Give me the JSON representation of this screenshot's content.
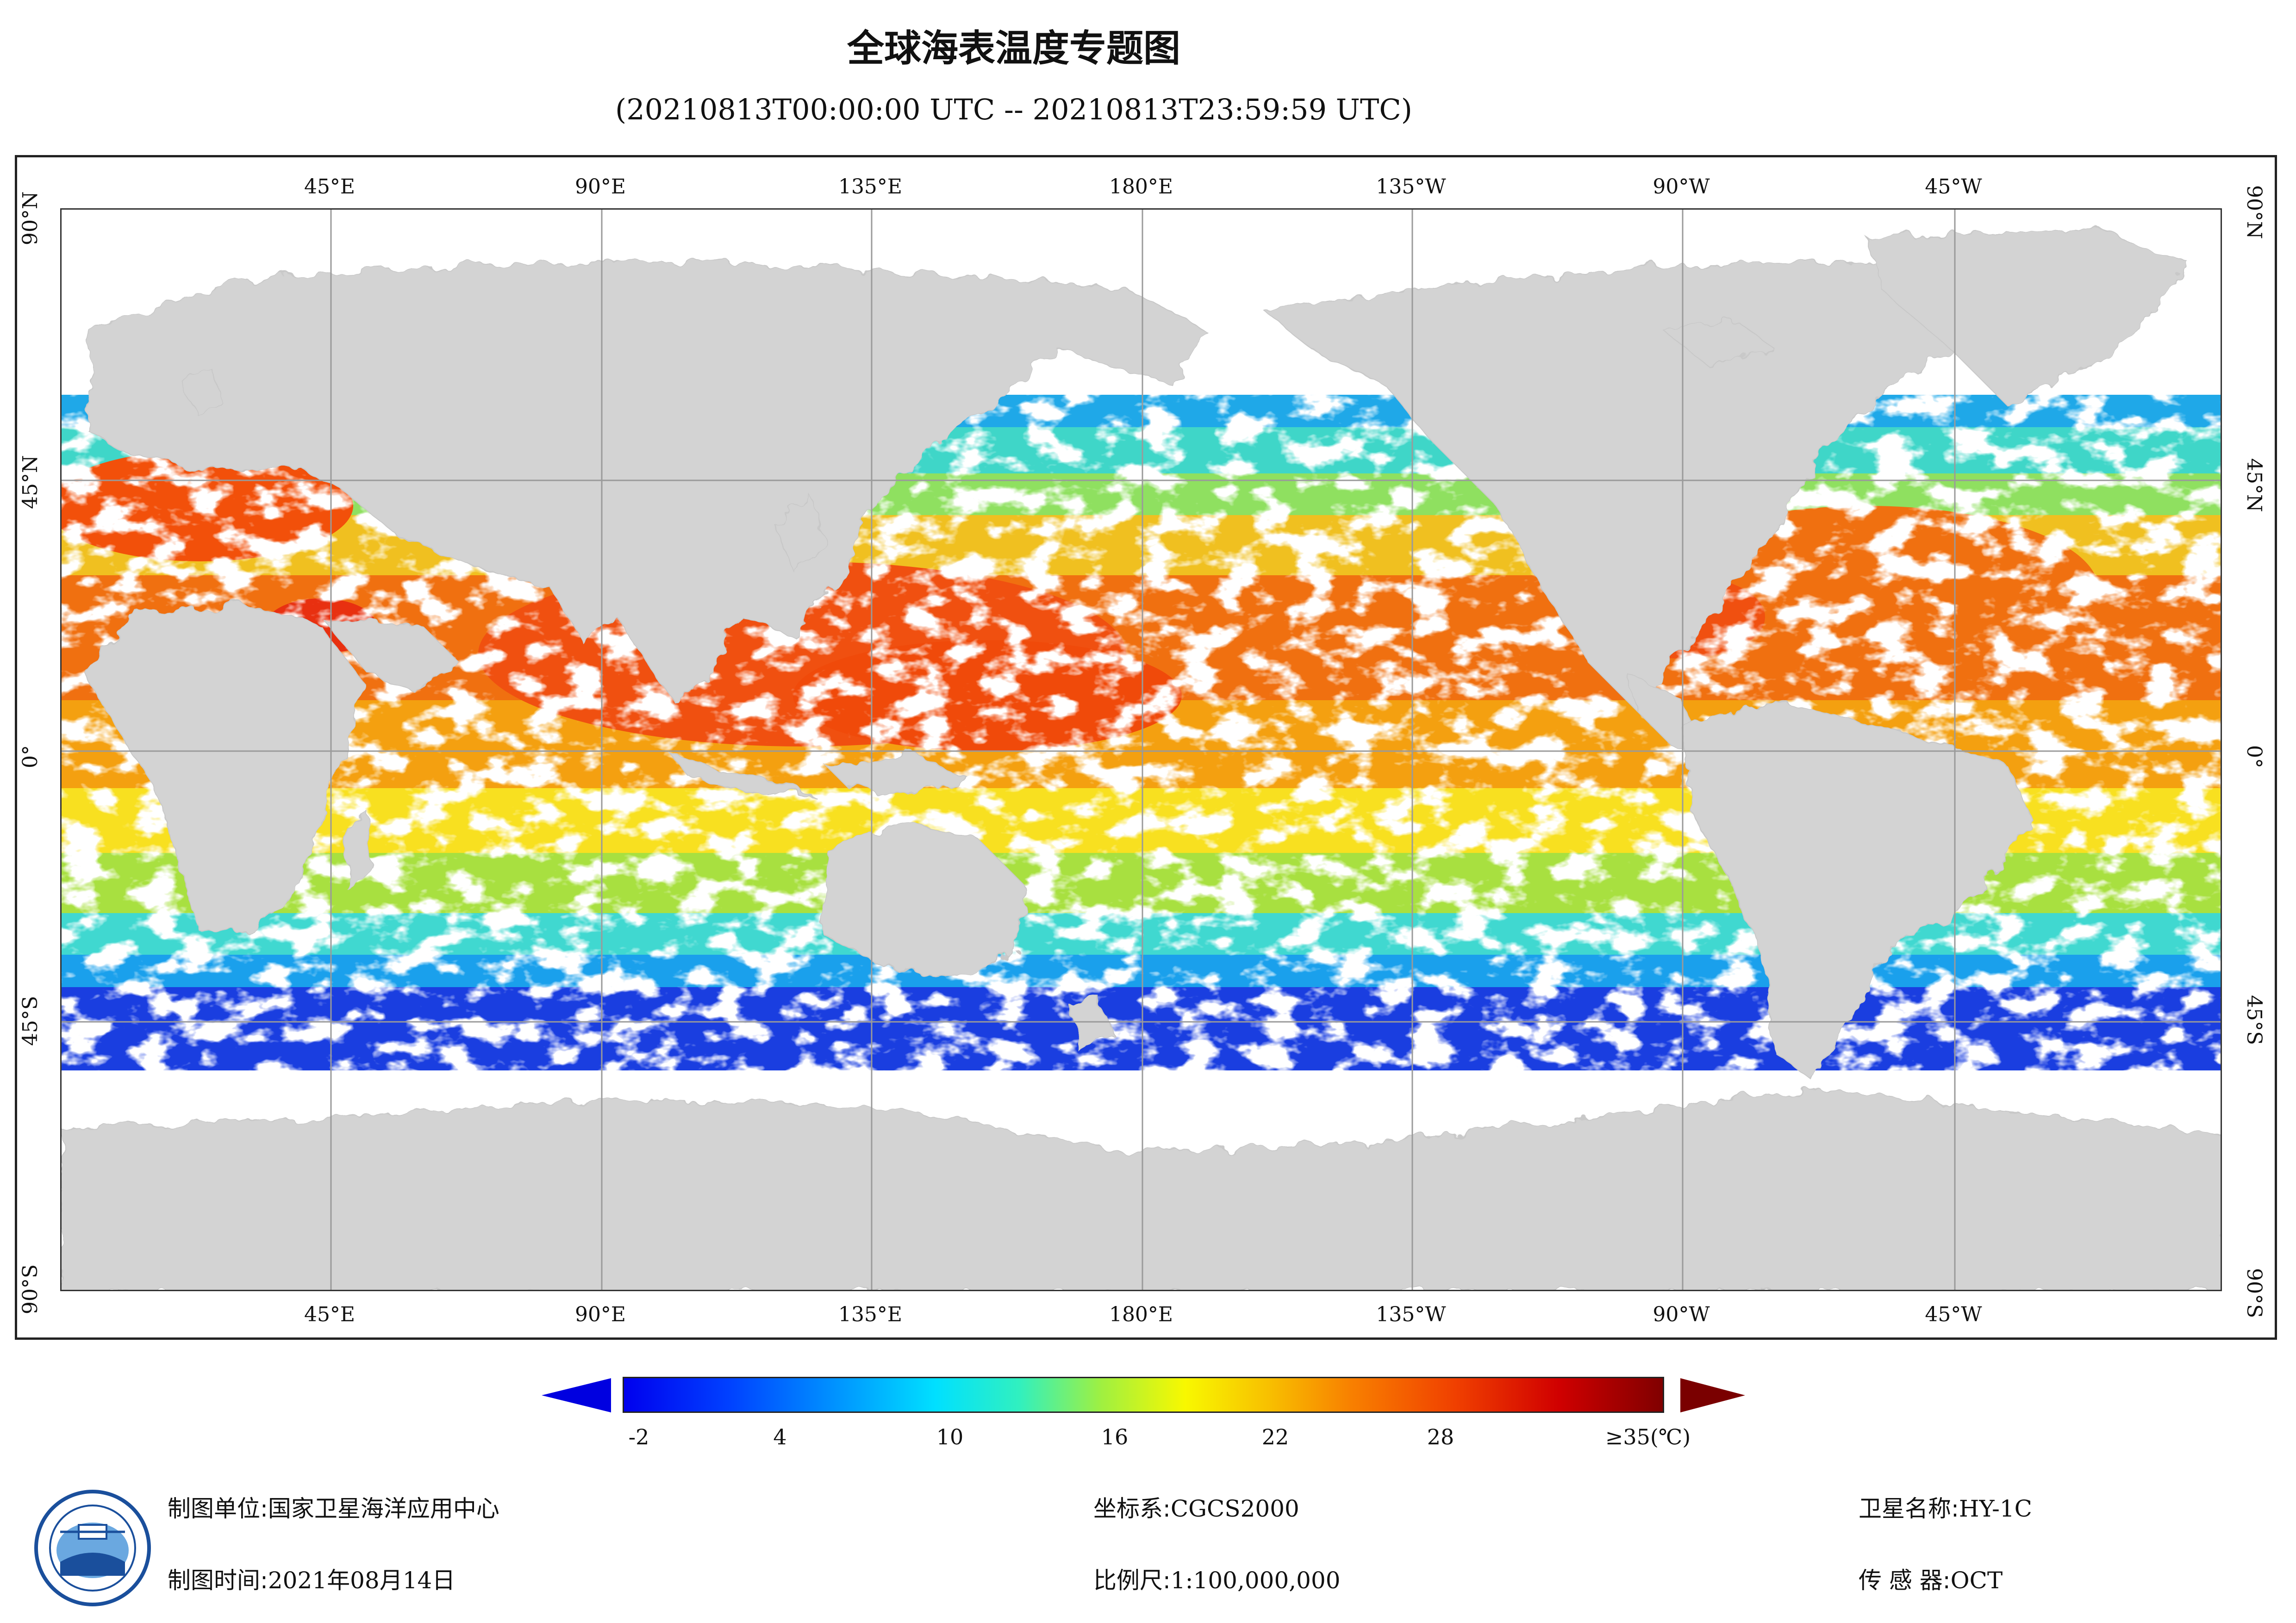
{
  "title": "全球海表温度专题图",
  "subtitle": "(20210813T00:00:00 UTC -- 20210813T23:59:59 UTC)",
  "map": {
    "top_lon_labels": [
      "45°E",
      "90°E",
      "135°E",
      "180°E",
      "135°W",
      "90°W",
      "45°W"
    ],
    "bottom_lon_labels": [
      "45°E",
      "90°E",
      "135°E",
      "180°E",
      "135°W",
      "90°W",
      "45°W"
    ],
    "lat_labels": [
      "90°N",
      "45°N",
      "0°",
      "45°S",
      "90°S"
    ],
    "colors": {
      "land": "#d3d3d3",
      "cloud": "#ffffff",
      "grid": "#9a9a9a"
    }
  },
  "colorbar": {
    "ticks": [
      "-2",
      "4",
      "10",
      "16",
      "22",
      "28"
    ],
    "max_label": "≥35(℃)",
    "unit": "℃",
    "range": [
      -2,
      35
    ]
  },
  "footer": {
    "unit_label": "制图单位:",
    "unit_value": "国家卫星海洋应用中心",
    "time_label": "制图时间:",
    "time_value": "2021年08月14日",
    "crs_label": "坐标系:",
    "crs_value": "CGCS2000",
    "scale_label": "比例尺:",
    "scale_value": "1:100,000,000",
    "sat_label": "卫星名称:",
    "sat_value": "HY-1C",
    "sensor_label": "传 感 器:",
    "sensor_value": "OCT"
  }
}
